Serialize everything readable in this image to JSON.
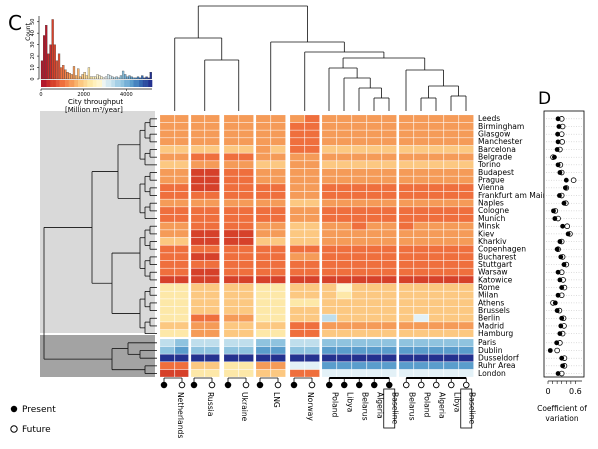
{
  "panels": {
    "c": "C",
    "d": "D"
  },
  "colors": {
    "ramp_warm": [
      "#b2182b",
      "#d6412a",
      "#ef6f3d",
      "#f59b58",
      "#fcc881",
      "#fde8a8",
      "#fff6cf"
    ],
    "ramp_cool": [
      "#e3f1f7",
      "#bfdeec",
      "#8fc3df",
      "#5a9dcc",
      "#3468b0",
      "#23318f"
    ],
    "upper_band": "#d9d9d9",
    "lower_band": "#a3a3a3"
  },
  "histogram": {
    "ylabel": "Count",
    "xlabel_line1": "City throughput",
    "xlabel_line2": "[Million m³/year]",
    "yticks": [
      "0",
      "10",
      "20",
      "30",
      "40",
      "50"
    ],
    "xticks": [
      "0",
      "2000",
      "4000"
    ],
    "xlim": [
      0,
      5200
    ],
    "ylim": [
      0,
      55
    ],
    "counts": [
      16,
      38,
      47,
      22,
      30,
      52,
      30,
      16,
      22,
      10,
      12,
      8,
      6,
      5,
      4,
      11,
      3,
      9,
      2,
      4,
      6,
      3,
      10,
      2,
      2,
      2,
      4,
      3,
      2,
      1,
      2,
      4,
      3,
      2,
      1,
      2,
      1,
      3,
      7,
      4,
      2,
      3,
      2,
      1,
      1,
      2,
      1,
      3,
      1,
      2,
      1,
      6
    ]
  },
  "chart_data": {
    "type": "heatmap",
    "columns": [
      "Netherlands",
      "",
      "Russia",
      "",
      "Ukraine",
      "",
      "LNG",
      "",
      "Norway",
      "",
      "Poland",
      "Libya",
      "Belarus",
      "Algeria",
      "Baseline",
      "Belarus",
      "Poland",
      "Algeria",
      "Libya",
      "Baseline"
    ],
    "column_groups": [
      {
        "labels": [
          "Netherlands"
        ],
        "markers": [
          "present",
          "future"
        ]
      },
      {
        "labels": [
          "Russia"
        ],
        "markers": [
          "present",
          "future"
        ]
      },
      {
        "labels": [
          "Ukraine"
        ],
        "markers": [
          "present",
          "future"
        ]
      },
      {
        "labels": [
          "LNG"
        ],
        "markers": [
          "present",
          "future"
        ]
      },
      {
        "labels": [
          "Norway"
        ],
        "markers": [
          "present",
          "future"
        ]
      },
      {
        "labels": [
          "Poland",
          "Libya",
          "Belarus",
          "Algeria",
          "Baseline"
        ],
        "markers": [
          "present",
          "present",
          "present",
          "present",
          "present"
        ]
      },
      {
        "labels": [
          "Belarus",
          "Poland",
          "Algeria",
          "Libya",
          "Baseline"
        ],
        "markers": [
          "future",
          "future",
          "future",
          "future",
          "future"
        ]
      }
    ],
    "rows": [
      "Leeds",
      "Birmingham",
      "Glasgow",
      "Manchester",
      "Barcelona",
      "Belgrade",
      "Torino",
      "Budapest",
      "Prague",
      "Vienna",
      "Frankfurt am Main",
      "Naples",
      "Cologne",
      "Munich",
      "Minsk",
      "Kiev",
      "Kharkiv",
      "Copenhagen",
      "Bucharest",
      "Stuttgart",
      "Warsaw",
      "Katowice",
      "Rome",
      "Milan",
      "Athens",
      "Brussels",
      "Berlin",
      "Madrid",
      "Hamburg",
      "Paris",
      "Dublin",
      "Dusseldorf",
      "Ruhr Area",
      "London"
    ],
    "values": [
      [
        3,
        3,
        3,
        3,
        3,
        3,
        3,
        3,
        3,
        2,
        3,
        3,
        3,
        3,
        3,
        3,
        3,
        3,
        3,
        3
      ],
      [
        3,
        3,
        3,
        3,
        3,
        3,
        3,
        3,
        2,
        2,
        3,
        3,
        3,
        3,
        3,
        3,
        3,
        3,
        3,
        3
      ],
      [
        3,
        3,
        3,
        3,
        3,
        3,
        3,
        3,
        2,
        2,
        3,
        3,
        3,
        3,
        3,
        3,
        3,
        3,
        3,
        3
      ],
      [
        3,
        3,
        3,
        3,
        3,
        3,
        3,
        3,
        2,
        2,
        3,
        3,
        3,
        3,
        3,
        3,
        3,
        3,
        3,
        3
      ],
      [
        4,
        4,
        4,
        4,
        4,
        4,
        3,
        4,
        2,
        2,
        4,
        4,
        4,
        4,
        4,
        4,
        4,
        4,
        4,
        4
      ],
      [
        3,
        3,
        2,
        2,
        2,
        2,
        3,
        3,
        3,
        3,
        3,
        3,
        3,
        3,
        3,
        3,
        3,
        3,
        3,
        3
      ],
      [
        4,
        4,
        3,
        3,
        3,
        3,
        4,
        4,
        3,
        3,
        4,
        4,
        4,
        4,
        4,
        4,
        4,
        4,
        4,
        4
      ],
      [
        3,
        3,
        1,
        1,
        2,
        2,
        3,
        3,
        3,
        3,
        3,
        3,
        3,
        3,
        3,
        3,
        3,
        3,
        3,
        3
      ],
      [
        3,
        3,
        1,
        1,
        2,
        2,
        3,
        3,
        3,
        3,
        3,
        3,
        3,
        3,
        3,
        3,
        3,
        3,
        3,
        3
      ],
      [
        2,
        2,
        1,
        1,
        2,
        2,
        2,
        2,
        3,
        3,
        2,
        2,
        2,
        2,
        2,
        2,
        2,
        2,
        2,
        2
      ],
      [
        2,
        2,
        2,
        2,
        2,
        2,
        2,
        2,
        3,
        3,
        2,
        2,
        2,
        2,
        2,
        2,
        2,
        2,
        2,
        2
      ],
      [
        3,
        3,
        3,
        3,
        3,
        3,
        3,
        3,
        4,
        4,
        3,
        3,
        3,
        3,
        3,
        3,
        3,
        3,
        3,
        3
      ],
      [
        2,
        2,
        2,
        2,
        2,
        2,
        2,
        2,
        3,
        3,
        2,
        2,
        2,
        2,
        2,
        2,
        2,
        2,
        2,
        2
      ],
      [
        2,
        2,
        2,
        2,
        2,
        2,
        2,
        2,
        3,
        3,
        2,
        2,
        2,
        2,
        2,
        2,
        2,
        2,
        2,
        2
      ],
      [
        3,
        3,
        2,
        2,
        2,
        2,
        3,
        3,
        4,
        4,
        3,
        3,
        2,
        3,
        3,
        2,
        3,
        3,
        3,
        3
      ],
      [
        3,
        3,
        1,
        1,
        1,
        1,
        3,
        3,
        4,
        4,
        3,
        3,
        3,
        3,
        3,
        3,
        3,
        3,
        3,
        3
      ],
      [
        4,
        4,
        1,
        1,
        1,
        1,
        4,
        4,
        4,
        4,
        3,
        3,
        3,
        3,
        3,
        3,
        3,
        3,
        3,
        3
      ],
      [
        2,
        2,
        2,
        2,
        2,
        2,
        2,
        2,
        2,
        2,
        2,
        2,
        2,
        2,
        2,
        2,
        2,
        2,
        2,
        2
      ],
      [
        2,
        2,
        1,
        1,
        2,
        2,
        2,
        2,
        3,
        3,
        2,
        2,
        2,
        2,
        2,
        2,
        2,
        2,
        2,
        2
      ],
      [
        2,
        2,
        2,
        2,
        2,
        2,
        2,
        2,
        2,
        2,
        2,
        2,
        2,
        2,
        2,
        2,
        2,
        2,
        2,
        2
      ],
      [
        2,
        2,
        1,
        1,
        2,
        2,
        2,
        2,
        2,
        2,
        2,
        2,
        2,
        2,
        2,
        2,
        2,
        2,
        2,
        2
      ],
      [
        1,
        1,
        1,
        1,
        1,
        1,
        1,
        1,
        1,
        1,
        1,
        1,
        1,
        1,
        1,
        1,
        1,
        1,
        1,
        1
      ],
      [
        5,
        5,
        4,
        4,
        4,
        4,
        5,
        5,
        4,
        4,
        4,
        6,
        4,
        4,
        4,
        4,
        4,
        4,
        4,
        4
      ],
      [
        5,
        5,
        4,
        4,
        4,
        4,
        5,
        5,
        4,
        4,
        4,
        5,
        4,
        4,
        4,
        4,
        4,
        4,
        4,
        4
      ],
      [
        5,
        5,
        4,
        4,
        4,
        4,
        5,
        5,
        5,
        5,
        4,
        4,
        4,
        4,
        4,
        4,
        4,
        4,
        4,
        4
      ],
      [
        5,
        5,
        4,
        4,
        4,
        4,
        5,
        5,
        4,
        4,
        4,
        4,
        4,
        4,
        4,
        4,
        4,
        4,
        4,
        4
      ],
      [
        5,
        5,
        2,
        2,
        3,
        3,
        5,
        5,
        4,
        4,
        8,
        4,
        4,
        4,
        4,
        4,
        7,
        4,
        4,
        4
      ],
      [
        4,
        4,
        3,
        3,
        4,
        4,
        4,
        4,
        2,
        2,
        3,
        3,
        3,
        3,
        3,
        3,
        3,
        3,
        3,
        3
      ],
      [
        5,
        5,
        3,
        3,
        4,
        4,
        5,
        5,
        2,
        2,
        4,
        4,
        4,
        4,
        4,
        4,
        4,
        4,
        4,
        4
      ],
      [
        8,
        9,
        8,
        8,
        8,
        8,
        9,
        9,
        8,
        8,
        9,
        9,
        9,
        9,
        9,
        9,
        9,
        9,
        9,
        9
      ],
      [
        9,
        10,
        9,
        9,
        9,
        9,
        10,
        10,
        9,
        9,
        10,
        10,
        10,
        10,
        10,
        10,
        10,
        10,
        10,
        10
      ],
      [
        12,
        12,
        12,
        12,
        12,
        12,
        12,
        12,
        12,
        12,
        12,
        12,
        12,
        12,
        12,
        12,
        12,
        12,
        12,
        12
      ],
      [
        2,
        2,
        4,
        4,
        5,
        5,
        3,
        3,
        7,
        7,
        10,
        10,
        10,
        10,
        10,
        10,
        10,
        10,
        10,
        10
      ],
      [
        1,
        1,
        5,
        5,
        5,
        5,
        4,
        4,
        2,
        2,
        7,
        7,
        7,
        7,
        7,
        7,
        7,
        7,
        7,
        7
      ]
    ],
    "cv": {
      "xticks": [
        "0",
        "0.6"
      ],
      "xlim": [
        0,
        0.7
      ],
      "present": [
        0.22,
        0.24,
        0.21,
        0.22,
        0.2,
        0.14,
        0.22,
        0.26,
        0.4,
        0.38,
        0.25,
        0.35,
        0.12,
        0.15,
        0.32,
        0.44,
        0.26,
        0.2,
        0.28,
        0.35,
        0.22,
        0.26,
        0.3,
        0.22,
        0.16,
        0.2,
        0.3,
        0.28,
        0.26,
        0.19,
        0.05,
        0.3,
        0.32,
        0.22
      ],
      "future": [
        0.3,
        0.32,
        0.3,
        0.31,
        0.26,
        0.11,
        0.27,
        0.3,
        0.56,
        0.4,
        0.3,
        0.39,
        0.16,
        0.22,
        0.42,
        0.48,
        0.3,
        0.22,
        0.32,
        0.4,
        0.3,
        0.33,
        0.36,
        0.3,
        0.11,
        0.25,
        0.34,
        0.35,
        0.32,
        0.26,
        0.2,
        0.36,
        0.36,
        0.3
      ],
      "xlabel_line1": "Coefficient of",
      "xlabel_line2": "variation"
    }
  },
  "legend": {
    "present": "Present",
    "future": "Future"
  }
}
